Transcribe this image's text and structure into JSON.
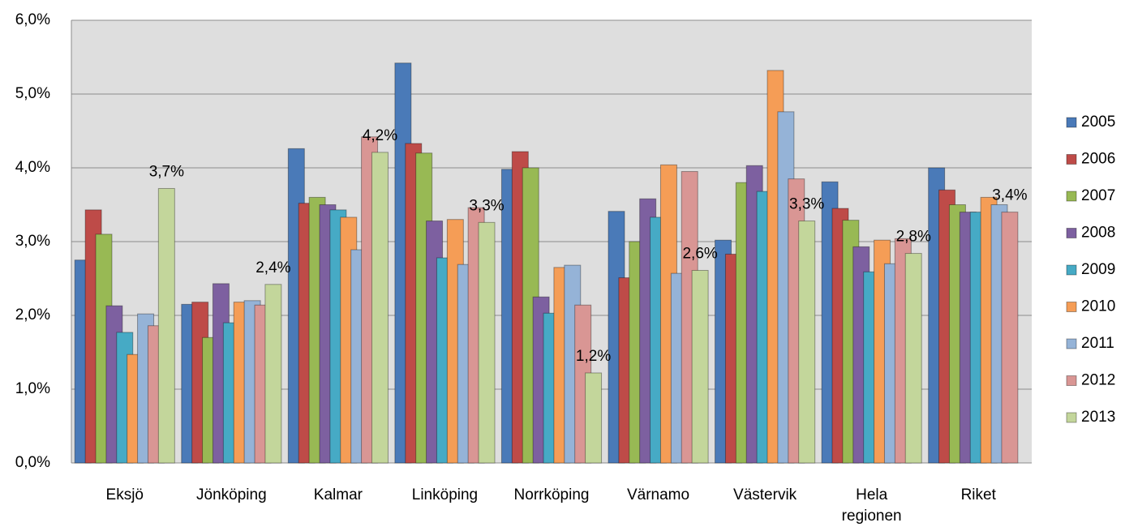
{
  "chart_data": {
    "type": "bar",
    "categories": [
      "Eksjö",
      "Jönköping",
      "Kalmar",
      "Linköping",
      "Norrköping",
      "Värnamo",
      "Västervik",
      "Hela regionen",
      "Riket"
    ],
    "series": [
      {
        "name": "2005",
        "color": "#4a7ab8",
        "values": [
          2.75,
          2.15,
          4.26,
          5.42,
          3.98,
          3.41,
          3.02,
          3.81,
          4.0
        ]
      },
      {
        "name": "2006",
        "color": "#be4b48",
        "values": [
          3.43,
          2.18,
          3.52,
          4.33,
          4.22,
          2.51,
          2.83,
          3.45,
          3.7
        ]
      },
      {
        "name": "2007",
        "color": "#98b954",
        "values": [
          3.1,
          1.7,
          3.6,
          4.2,
          4.0,
          3.0,
          3.8,
          3.29,
          3.5
        ]
      },
      {
        "name": "2008",
        "color": "#7d60a0",
        "values": [
          2.13,
          2.43,
          3.5,
          3.28,
          2.25,
          3.58,
          4.03,
          2.93,
          3.4
        ]
      },
      {
        "name": "2009",
        "color": "#46aac5",
        "values": [
          1.77,
          1.9,
          3.43,
          2.78,
          2.03,
          3.33,
          3.68,
          2.59,
          3.4
        ]
      },
      {
        "name": "2010",
        "color": "#f59d56",
        "values": [
          1.47,
          2.18,
          3.33,
          3.3,
          2.65,
          4.04,
          5.32,
          3.02,
          3.6
        ]
      },
      {
        "name": "2011",
        "color": "#95b3d7",
        "values": [
          2.02,
          2.2,
          2.89,
          2.69,
          2.68,
          2.57,
          4.76,
          2.7,
          3.5
        ]
      },
      {
        "name": "2012",
        "color": "#d99694",
        "values": [
          1.86,
          2.14,
          4.42,
          3.46,
          2.14,
          3.95,
          3.85,
          3.04,
          3.4
        ],
        "value_labels": [
          null,
          null,
          null,
          null,
          null,
          null,
          null,
          null,
          "3,4%"
        ]
      },
      {
        "name": "2013",
        "color": "#c3d69b",
        "values": [
          3.72,
          2.42,
          4.21,
          3.26,
          1.22,
          2.61,
          3.28,
          2.84,
          null
        ],
        "value_labels": [
          "3,7%",
          "2,4%",
          "4,2%",
          "3,3%",
          "1,2%",
          "2,6%",
          "3,3%",
          "2,8%",
          null
        ]
      }
    ],
    "ylim": [
      0,
      6
    ],
    "yticks": [
      {
        "value": 0,
        "label": "0,0%"
      },
      {
        "value": 1,
        "label": "1,0%"
      },
      {
        "value": 2,
        "label": "2,0%"
      },
      {
        "value": 3,
        "label": "3,0%"
      },
      {
        "value": 4,
        "label": "4,0%"
      },
      {
        "value": 5,
        "label": "5,0%"
      },
      {
        "value": 6,
        "label": "6,0%"
      }
    ],
    "grid": true,
    "legend": "right"
  }
}
